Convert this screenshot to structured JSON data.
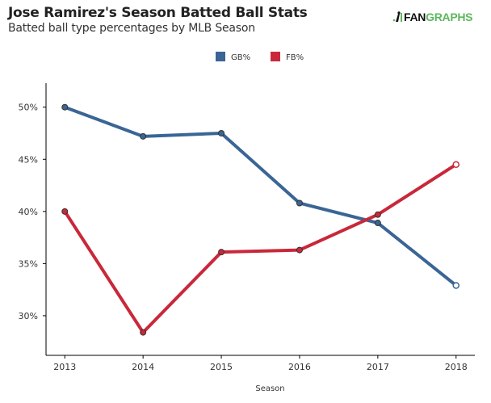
{
  "header": {
    "title": "Jose Ramirez's Season Batted Ball Stats",
    "subtitle": "Batted ball type percentages by MLB Season",
    "logo_text_dark": "FAN",
    "logo_text_green": "GRAPHS"
  },
  "chart_data": {
    "type": "line",
    "title": "Jose Ramirez's Season Batted Ball Stats",
    "subtitle": "Batted ball type percentages by MLB Season",
    "xlabel": "Season",
    "ylabel": "",
    "x": [
      2013,
      2014,
      2015,
      2016,
      2017,
      2018
    ],
    "x_tick_labels": [
      "2013",
      "2014",
      "2015",
      "2016",
      "2017",
      "2018"
    ],
    "y_ticks": [
      30,
      35,
      40,
      45,
      50
    ],
    "y_tick_labels": [
      "30%",
      "35%",
      "40%",
      "45%",
      "50%"
    ],
    "ylim": [
      26.2,
      52.3
    ],
    "xlim": [
      2012.76,
      2018.24
    ],
    "grid": false,
    "legend_position": "top-center",
    "series": [
      {
        "name": "GB%",
        "color": "#3a6595",
        "values": [
          50.0,
          47.2,
          47.5,
          40.8,
          38.9,
          32.9
        ]
      },
      {
        "name": "FB%",
        "color": "#c9283a",
        "values": [
          40.0,
          28.4,
          36.1,
          36.3,
          39.7,
          44.5
        ]
      }
    ],
    "hollow_last_point": true
  }
}
